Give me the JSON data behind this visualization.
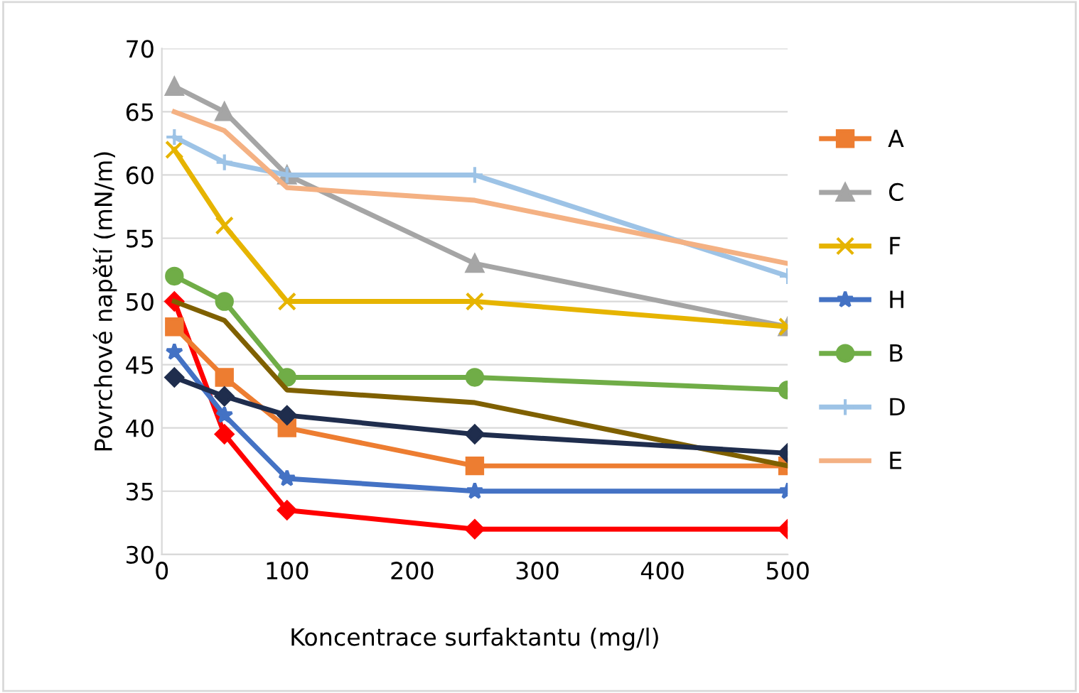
{
  "chart_data": {
    "type": "line",
    "xlabel": "Koncentrace surfaktantu (mg/l)",
    "ylabel": "Povrchové napětí (mN/m)",
    "x": [
      10,
      50,
      100,
      250,
      500
    ],
    "xlim": [
      0,
      500
    ],
    "xticks": [
      0,
      100,
      200,
      300,
      400,
      500
    ],
    "ylim": [
      30,
      70
    ],
    "yticks": [
      30,
      35,
      40,
      45,
      50,
      55,
      60,
      65,
      70
    ],
    "grid": "y",
    "legend": "right",
    "series": [
      {
        "color": "#ff0000",
        "marker": "diamond",
        "values": [
          50,
          39.5,
          33.5,
          32,
          32
        ]
      },
      {
        "name": "A",
        "color": "#ed7d31",
        "marker": "square",
        "values": [
          48,
          44,
          40,
          37,
          37
        ]
      },
      {
        "name": "C",
        "color": "#a5a5a5",
        "marker": "triangle",
        "values": [
          67,
          65,
          60,
          53,
          48
        ]
      },
      {
        "name": "F",
        "color": "#e6b400",
        "marker": "cross",
        "values": [
          62,
          56,
          50,
          50,
          48
        ]
      },
      {
        "name": "H",
        "color": "#4472c4",
        "marker": "star",
        "values": [
          46,
          41,
          36,
          35,
          35
        ]
      },
      {
        "name": "B",
        "color": "#70ad47",
        "marker": "circle",
        "values": [
          52,
          50,
          44,
          44,
          43
        ]
      },
      {
        "name": "D",
        "color": "#9dc3e6",
        "marker": "plus",
        "values": [
          63,
          61,
          60,
          60,
          52
        ]
      },
      {
        "name": "E",
        "color": "#f4b183",
        "marker": "none",
        "values": [
          65,
          63.5,
          59,
          58,
          53
        ]
      },
      {
        "color": "#7f6000",
        "marker": "none",
        "values": [
          50,
          48.5,
          43,
          42,
          37
        ]
      },
      {
        "color": "#1f2d4d",
        "marker": "diamond",
        "values": [
          44,
          42.5,
          41,
          39.5,
          38
        ]
      }
    ]
  }
}
